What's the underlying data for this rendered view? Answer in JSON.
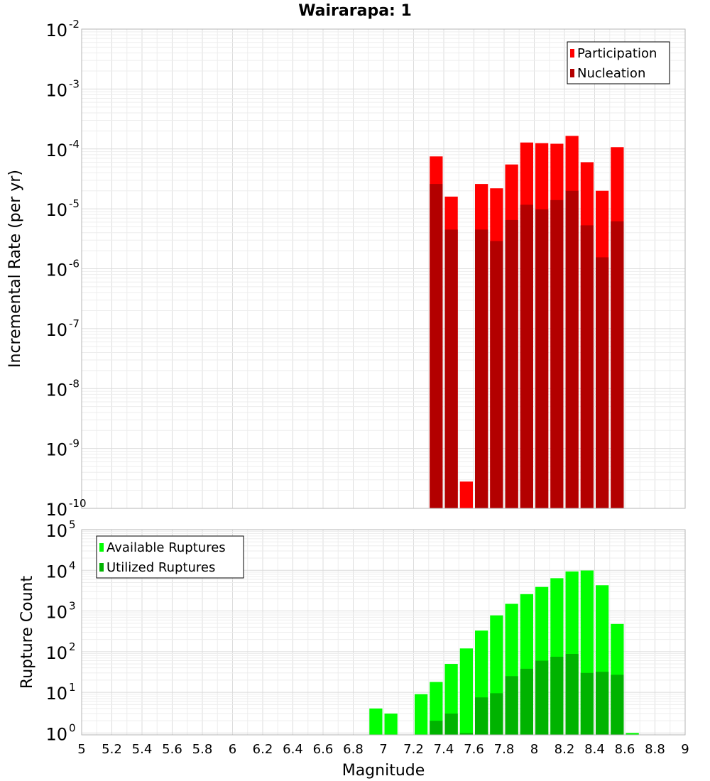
{
  "title": "Wairarapa: 1",
  "xlabel": "Magnitude",
  "chart_data": [
    {
      "type": "bar",
      "panel": "top",
      "ylabel": "Incremental Rate (per yr)",
      "yscale": "log",
      "ylim": [
        1e-10,
        0.01
      ],
      "xlim": [
        5,
        9
      ],
      "grid": true,
      "legend_position": "top-right",
      "bar_width": 0.1,
      "x_ticks": [
        "5",
        "5.2",
        "5.4",
        "5.6",
        "5.8",
        "6",
        "6.2",
        "6.4",
        "6.6",
        "6.8",
        "7",
        "7.2",
        "7.4",
        "7.6",
        "7.8",
        "8",
        "8.2",
        "8.4",
        "8.6",
        "8.8",
        "9"
      ],
      "y_tick_exponents": [
        -10,
        -9,
        -8,
        -7,
        -6,
        -5,
        -4,
        -3,
        -2
      ],
      "series": [
        {
          "name": "Participation",
          "color": "#ff0000",
          "x": [
            7.35,
            7.45,
            7.55,
            7.65,
            7.75,
            7.85,
            7.95,
            8.05,
            8.15,
            8.25,
            8.35,
            8.45,
            8.55
          ],
          "values": [
            7.5e-05,
            1.6e-05,
            2.8e-10,
            2.6e-05,
            2.2e-05,
            5.5e-05,
            0.000128,
            0.000125,
            0.000122,
            0.000165,
            6e-05,
            2e-05,
            0.000107
          ]
        },
        {
          "name": "Nucleation",
          "color": "#b30000",
          "x": [
            7.35,
            7.45,
            7.65,
            7.75,
            7.85,
            7.95,
            8.05,
            8.15,
            8.25,
            8.35,
            8.45,
            8.55
          ],
          "values": [
            2.6e-05,
            4.5e-06,
            4.5e-06,
            2.9e-06,
            6.5e-06,
            1.17e-05,
            9.8e-06,
            1.4e-05,
            2e-05,
            5.3e-06,
            1.55e-06,
            6.2e-06
          ]
        }
      ]
    },
    {
      "type": "bar",
      "panel": "bottom",
      "ylabel": "Rupture Count",
      "yscale": "log",
      "ylim": [
        0.9,
        100000
      ],
      "xlim": [
        5,
        9
      ],
      "grid": true,
      "legend_position": "top-left",
      "bar_width": 0.1,
      "x_ticks": [
        "5",
        "5.2",
        "5.4",
        "5.6",
        "5.8",
        "6",
        "6.2",
        "6.4",
        "6.6",
        "6.8",
        "7",
        "7.2",
        "7.4",
        "7.6",
        "7.8",
        "8",
        "8.2",
        "8.4",
        "8.6",
        "8.8",
        "9"
      ],
      "y_tick_exponents": [
        0,
        1,
        2,
        3,
        4,
        5
      ],
      "series": [
        {
          "name": "Available Ruptures",
          "color": "#00ff00",
          "x": [
            6.95,
            7.05,
            7.25,
            7.35,
            7.45,
            7.55,
            7.65,
            7.75,
            7.85,
            7.95,
            8.05,
            8.15,
            8.25,
            8.35,
            8.45,
            8.55,
            8.65
          ],
          "values": [
            4,
            3,
            9,
            18,
            50,
            120,
            330,
            780,
            1500,
            2600,
            3900,
            6400,
            9400,
            9900,
            4300,
            480,
            1
          ]
        },
        {
          "name": "Utilized Ruptures",
          "color": "#00b300",
          "x": [
            7.35,
            7.45,
            7.55,
            7.65,
            7.75,
            7.85,
            7.95,
            8.05,
            8.15,
            8.25,
            8.35,
            8.45,
            8.55
          ],
          "values": [
            2,
            3,
            1,
            7.5,
            9.5,
            25,
            38,
            60,
            75,
            88,
            30,
            32,
            27
          ]
        }
      ]
    }
  ]
}
